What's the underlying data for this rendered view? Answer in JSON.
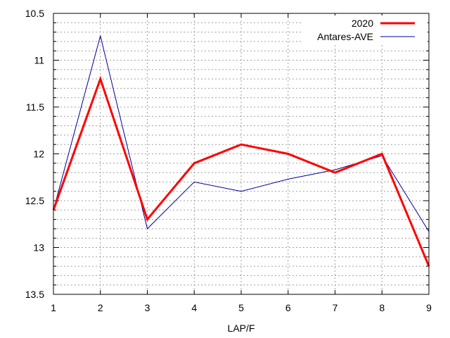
{
  "chart_data": {
    "type": "line",
    "xlabel": "LAP/F",
    "ylabel": "",
    "x": [
      1,
      2,
      3,
      4,
      5,
      6,
      7,
      8,
      9
    ],
    "xlim": [
      1,
      9
    ],
    "ylim": [
      13.5,
      10.5
    ],
    "y_inverted": true,
    "x_ticks": [
      "1",
      "2",
      "3",
      "4",
      "5",
      "6",
      "7",
      "8",
      "9"
    ],
    "y_ticks": [
      "10.5",
      "11",
      "11.5",
      "12",
      "12.5",
      "13",
      "13.5"
    ],
    "y_minor_step": 0.1,
    "grid": true,
    "legend_position": "top-right",
    "series": [
      {
        "name": "2020",
        "color": "#ff0000",
        "values": [
          12.6,
          11.2,
          12.7,
          12.1,
          11.9,
          12.0,
          12.2,
          12.0,
          13.2
        ]
      },
      {
        "name": "Antares-AVE",
        "color": "#000099",
        "values": [
          12.6,
          10.74,
          12.8,
          12.3,
          12.4,
          12.27,
          12.17,
          12.02,
          12.83
        ]
      }
    ]
  }
}
